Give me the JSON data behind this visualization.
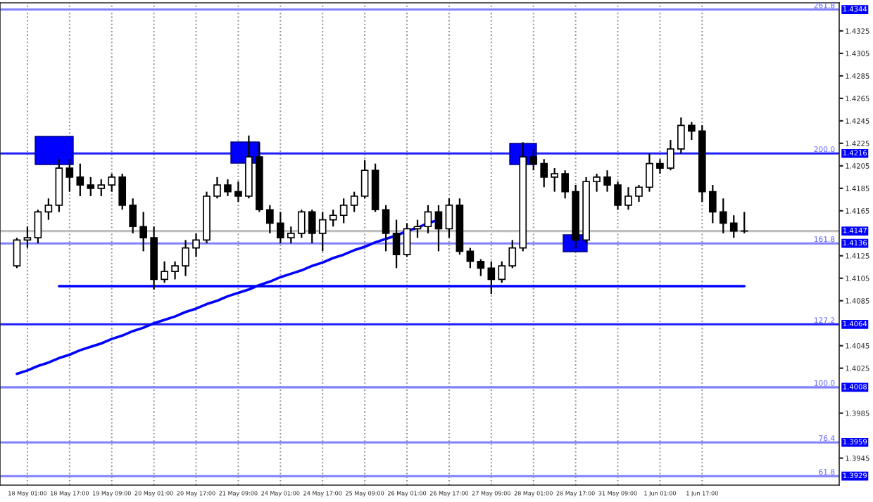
{
  "chart_data": {
    "type": "candlestick",
    "categories": [
      null,
      "18 May 01:00",
      null,
      null,
      null,
      "18 May 17:00",
      null,
      null,
      null,
      "19 May 09:00",
      null,
      null,
      null,
      "20 May 01:00",
      null,
      null,
      null,
      "20 May 17:00",
      null,
      null,
      null,
      "21 May 09:00",
      null,
      null,
      null,
      "24 May 01:00",
      null,
      null,
      null,
      "24 May 17:00",
      null,
      null,
      null,
      "25 May 09:00",
      null,
      null,
      null,
      "26 May 01:00",
      null,
      null,
      null,
      "26 May 17:00",
      null,
      null,
      null,
      "27 May 09:00",
      null,
      null,
      null,
      "28 May 01:00",
      null,
      null,
      null,
      "28 May 17:00",
      null,
      null,
      null,
      "31 May 09:00",
      null,
      null,
      null,
      "1 Jun 01:00",
      null,
      null,
      null,
      "1 Jun 17:00",
      null,
      null,
      null,
      null
    ],
    "ohlc": [
      [
        1.4116,
        1.4141,
        1.4114,
        1.4139
      ],
      [
        1.4139,
        1.4151,
        1.4132,
        1.4141
      ],
      [
        1.4141,
        1.4166,
        1.4136,
        1.4164
      ],
      [
        1.4164,
        1.4176,
        1.4157,
        1.417
      ],
      [
        1.417,
        1.4211,
        1.4164,
        1.4203
      ],
      [
        1.4203,
        1.4211,
        1.4182,
        1.4195
      ],
      [
        1.4195,
        1.4207,
        1.4178,
        1.4188
      ],
      [
        1.4188,
        1.4195,
        1.4178,
        1.4185
      ],
      [
        1.4185,
        1.4193,
        1.4178,
        1.4188
      ],
      [
        1.4188,
        1.4198,
        1.4182,
        1.4195
      ],
      [
        1.4195,
        1.4198,
        1.4166,
        1.417
      ],
      [
        1.417,
        1.4176,
        1.4145,
        1.4151
      ],
      [
        1.4151,
        1.4164,
        1.4129,
        1.4141
      ],
      [
        1.4141,
        1.4151,
        1.4095,
        1.4104
      ],
      [
        1.4104,
        1.412,
        1.4101,
        1.4111
      ],
      [
        1.4111,
        1.412,
        1.4104,
        1.4116
      ],
      [
        1.4116,
        1.4139,
        1.4107,
        1.4132
      ],
      [
        1.4132,
        1.4145,
        1.4124,
        1.4139
      ],
      [
        1.4139,
        1.4182,
        1.4136,
        1.4178
      ],
      [
        1.4178,
        1.4195,
        1.4176,
        1.4188
      ],
      [
        1.4188,
        1.4193,
        1.4178,
        1.4182
      ],
      [
        1.4182,
        1.4191,
        1.4173,
        1.4178
      ],
      [
        1.4178,
        1.4232,
        1.4176,
        1.4213
      ],
      [
        1.4213,
        1.4226,
        1.4164,
        1.4166
      ],
      [
        1.4166,
        1.417,
        1.4145,
        1.4154
      ],
      [
        1.4154,
        1.4164,
        1.4136,
        1.4141
      ],
      [
        1.4141,
        1.4151,
        1.4136,
        1.4145
      ],
      [
        1.4145,
        1.4166,
        1.4141,
        1.4164
      ],
      [
        1.4164,
        1.4166,
        1.4136,
        1.4145
      ],
      [
        1.4145,
        1.4164,
        1.4129,
        1.4157
      ],
      [
        1.4157,
        1.4166,
        1.4151,
        1.4161
      ],
      [
        1.4161,
        1.4176,
        1.4154,
        1.417
      ],
      [
        1.417,
        1.4182,
        1.4164,
        1.4178
      ],
      [
        1.4178,
        1.421,
        1.4176,
        1.4201
      ],
      [
        1.4201,
        1.4207,
        1.4164,
        1.4166
      ],
      [
        1.4166,
        1.417,
        1.4129,
        1.4145
      ],
      [
        1.4145,
        1.4157,
        1.4114,
        1.4126
      ],
      [
        1.4126,
        1.4154,
        1.4124,
        1.4149
      ],
      [
        1.4149,
        1.4157,
        1.4141,
        1.4151
      ],
      [
        1.4151,
        1.417,
        1.4145,
        1.4164
      ],
      [
        1.4164,
        1.417,
        1.4129,
        1.4149
      ],
      [
        1.4149,
        1.4176,
        1.4141,
        1.417
      ],
      [
        1.417,
        1.4176,
        1.4126,
        1.4129
      ],
      [
        1.4129,
        1.4132,
        1.4114,
        1.412
      ],
      [
        1.412,
        1.4122,
        1.4107,
        1.4114
      ],
      [
        1.4114,
        1.412,
        1.4091,
        1.4104
      ],
      [
        1.4104,
        1.412,
        1.4101,
        1.4116
      ],
      [
        1.4116,
        1.4139,
        1.4114,
        1.4132
      ],
      [
        1.4132,
        1.4226,
        1.4129,
        1.4213
      ],
      [
        1.4213,
        1.422,
        1.4201,
        1.4207
      ],
      [
        1.4207,
        1.4211,
        1.4186,
        1.4195
      ],
      [
        1.4195,
        1.4203,
        1.4182,
        1.4198
      ],
      [
        1.4198,
        1.4201,
        1.4176,
        1.4182
      ],
      [
        1.4182,
        1.4188,
        1.4132,
        1.4139
      ],
      [
        1.4139,
        1.4195,
        1.4136,
        1.4191
      ],
      [
        1.4191,
        1.4198,
        1.4182,
        1.4195
      ],
      [
        1.4195,
        1.4201,
        1.4182,
        1.4188
      ],
      [
        1.4188,
        1.4191,
        1.4166,
        1.417
      ],
      [
        1.417,
        1.4186,
        1.4166,
        1.4178
      ],
      [
        1.4178,
        1.4188,
        1.4173,
        1.4186
      ],
      [
        1.4186,
        1.4216,
        1.4182,
        1.4207
      ],
      [
        1.4207,
        1.4211,
        1.4198,
        1.4203
      ],
      [
        1.4203,
        1.4228,
        1.4201,
        1.422
      ],
      [
        1.422,
        1.4248,
        1.4216,
        1.4241
      ],
      [
        1.4241,
        1.4244,
        1.4228,
        1.4236
      ],
      [
        1.4236,
        1.4241,
        1.4173,
        1.4182
      ],
      [
        1.4182,
        1.4188,
        1.4154,
        1.4164
      ],
      [
        1.4164,
        1.4176,
        1.4145,
        1.4154
      ],
      [
        1.4154,
        1.4161,
        1.4141,
        1.4147
      ],
      [
        1.4147,
        1.4164,
        1.4145,
        1.4147
      ]
    ],
    "series": [
      {
        "type": "line",
        "color": "#0000ff",
        "values": [
          1.402,
          1.4023,
          1.4027,
          1.403,
          1.4034,
          1.4037,
          1.4041,
          1.4044,
          1.4047,
          1.4051,
          1.4054,
          1.4058,
          1.4061,
          1.4065,
          1.4068,
          1.4071,
          1.4075,
          1.4078,
          1.4082,
          1.4085,
          1.4089,
          1.4092,
          1.4095,
          1.4099,
          1.4102,
          1.4106,
          1.4109,
          1.4112,
          1.4116,
          1.4119,
          1.4123,
          1.4126,
          1.413,
          1.4133,
          1.4137,
          1.414,
          1.4143,
          1.4147,
          1.415,
          1.4154,
          1.4157,
          null,
          null,
          null,
          null,
          null,
          null,
          null,
          null,
          null,
          null,
          null,
          null,
          null,
          null,
          null,
          null,
          null,
          null,
          null,
          null,
          null,
          null,
          null,
          null,
          null,
          null,
          null,
          null,
          null
        ]
      },
      {
        "type": "line",
        "color": "#0000ff",
        "values": [
          null,
          null,
          null,
          null,
          1.4098,
          1.4098,
          1.4098,
          1.4098,
          1.4098,
          1.4098,
          1.4098,
          1.4098,
          1.4098,
          1.4098,
          1.4098,
          1.4098,
          1.4098,
          1.4098,
          1.4098,
          1.4098,
          1.4098,
          1.4098,
          1.4098,
          1.4098,
          1.4098,
          1.4098,
          1.4098,
          1.4098,
          1.4098,
          1.4098,
          1.4098,
          1.4098,
          1.4098,
          1.4098,
          1.4098,
          1.4098,
          1.4098,
          1.4098,
          1.4098,
          1.4098,
          1.4098,
          1.4098,
          1.4098,
          1.4098,
          1.4098,
          1.4098,
          1.4098,
          1.4098,
          1.4098,
          1.4098,
          1.4098,
          1.4098,
          1.4098,
          1.4098,
          1.4098,
          1.4098,
          1.4098,
          1.4098,
          1.4098,
          1.4098,
          1.4098,
          1.4098,
          1.4098,
          1.4098,
          1.4098,
          1.4098,
          1.4098,
          1.4098,
          1.4098,
          1.4098
        ]
      }
    ],
    "ylim": [
      1.3921,
      1.435
    ],
    "yticks": [
      1.3945,
      1.3985,
      1.4025,
      1.4045,
      1.4085,
      1.4105,
      1.4125,
      1.4165,
      1.4185,
      1.4205,
      1.4225,
      1.4245,
      1.4265,
      1.4285,
      1.4305,
      1.4325
    ],
    "ref_lines": [
      {
        "axis": "y",
        "value": 1.4344,
        "label": "1.4344",
        "color": "#8080ff"
      },
      {
        "axis": "y",
        "value": 1.4216,
        "label": "1.4216",
        "color": "#1f1fff"
      },
      {
        "axis": "y",
        "value": 1.4147,
        "label": "1.4147",
        "color": "#c0c0c0"
      },
      {
        "axis": "y",
        "value": 1.4136,
        "label": "1.4136",
        "color": "#8080ff"
      },
      {
        "axis": "y",
        "value": 1.4064,
        "label": "1.4064",
        "color": "#1f1fff"
      },
      {
        "axis": "y",
        "value": 1.4008,
        "label": "1.4008",
        "color": "#8080ff"
      },
      {
        "axis": "y",
        "value": 1.3959,
        "label": "1.3959",
        "color": "#8080ff"
      },
      {
        "axis": "y",
        "value": 1.3929,
        "label": "1.3929",
        "color": "#8080ff"
      }
    ],
    "annotations": [
      {
        "text": "261.8",
        "y": 1.4344
      },
      {
        "text": "200.0",
        "y": 1.4216
      },
      {
        "text": "161.8",
        "y": 1.4136
      },
      {
        "text": "127.2",
        "y": 1.4064
      },
      {
        "text": "100.0",
        "y": 1.4008
      },
      {
        "text": "76.4",
        "y": 1.3959
      },
      {
        "text": "61.8",
        "y": 1.3929
      }
    ],
    "grid": "x",
    "legend": false
  }
}
